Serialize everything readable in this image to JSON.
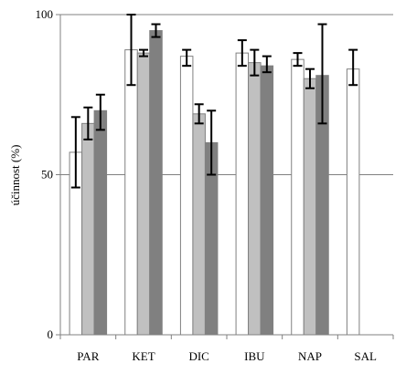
{
  "chart_data": {
    "type": "bar",
    "ylabel": "účinnost (%)",
    "xlabel": "",
    "ylim": [
      0,
      100
    ],
    "yticks": [
      0,
      50,
      100
    ],
    "grid": {
      "horizontal": true,
      "values": [
        50,
        100
      ]
    },
    "categories": [
      "PAR",
      "KET",
      "DIC",
      "IBU",
      "NAP",
      "SAL"
    ],
    "series": [
      {
        "color": "#ffffff",
        "values": [
          57,
          89,
          87,
          88,
          86,
          83
        ],
        "err_low": [
          46,
          78,
          84,
          84,
          84,
          78
        ],
        "err_high": [
          68,
          100,
          89,
          92,
          88,
          89
        ]
      },
      {
        "color": "#c0c0c0",
        "values": [
          66,
          88,
          69,
          85,
          80,
          null
        ],
        "err_low": [
          61,
          87,
          66,
          81,
          77,
          null
        ],
        "err_high": [
          71,
          89,
          72,
          89,
          83,
          null
        ]
      },
      {
        "color": "#808080",
        "values": [
          70,
          95,
          60,
          84,
          81,
          null
        ],
        "err_low": [
          64,
          93,
          50,
          82,
          66,
          null
        ],
        "err_high": [
          75,
          97,
          70,
          87,
          97,
          null
        ]
      }
    ]
  }
}
